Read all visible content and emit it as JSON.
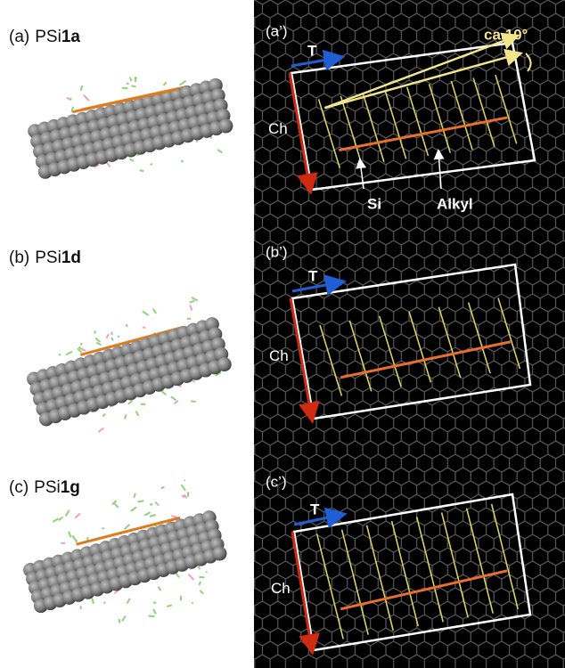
{
  "panels": [
    {
      "label": "(a)",
      "compound": "PSi",
      "number": "1a",
      "map_label": "(a’)"
    },
    {
      "label": "(b)",
      "compound": "PSi",
      "number": "1d",
      "map_label": "(b’)"
    },
    {
      "label": "(c)",
      "compound": "PSi",
      "number": "1g",
      "map_label": "(c’)"
    }
  ],
  "axis_labels": {
    "t": "T",
    "ch": "Ch"
  },
  "annotations": {
    "angle": "ca.10°",
    "si": "Si",
    "alkyl": "Alkyl"
  }
}
